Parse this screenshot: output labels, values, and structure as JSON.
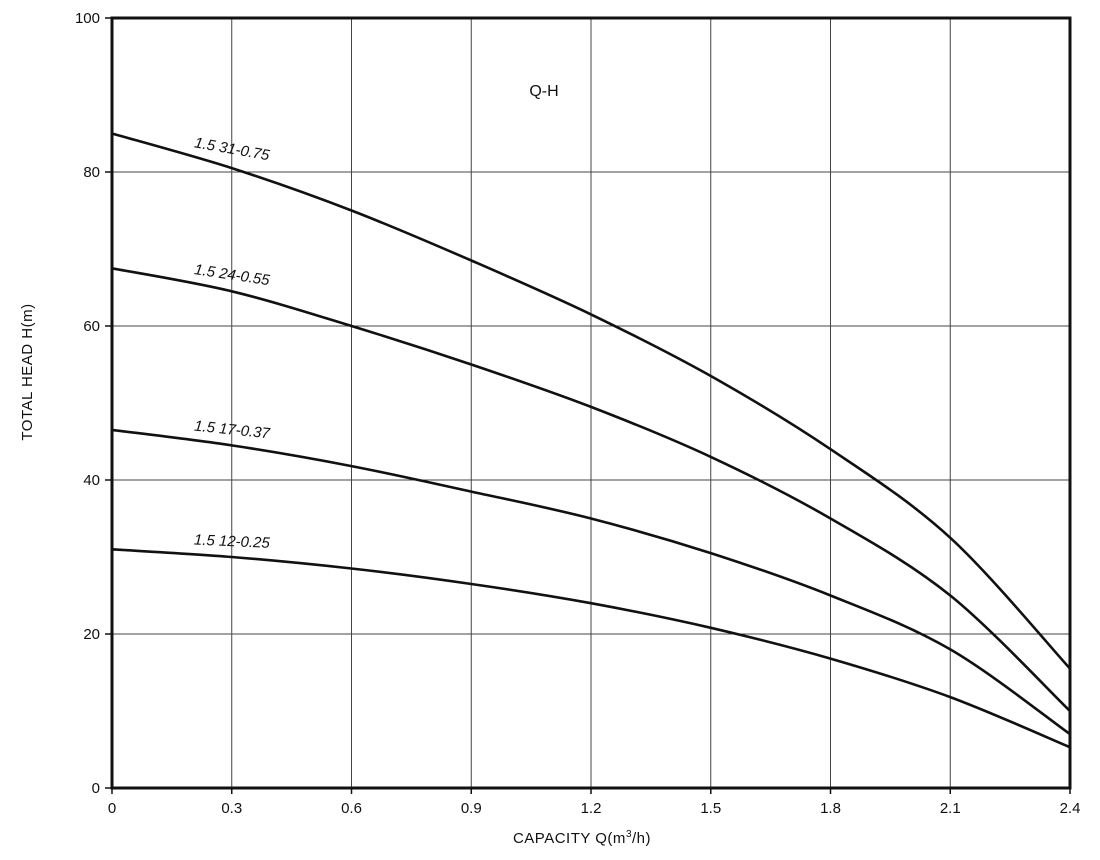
{
  "chart_data": {
    "type": "line",
    "title": "Q-H",
    "xlabel_main": "CAPACITY  Q(m",
    "xlabel_sup": "3",
    "xlabel_end": "/h)",
    "ylabel": "TOTAL HEAD  H(m)",
    "xlim": [
      0,
      2.4
    ],
    "ylim": [
      0,
      100
    ],
    "x_ticks": [
      "0",
      "0.3",
      "0.6",
      "0.9",
      "1.2",
      "1.5",
      "1.8",
      "2.1",
      "2.4"
    ],
    "y_ticks": [
      "0",
      "20",
      "40",
      "60",
      "80",
      "100"
    ],
    "grid": true,
    "series": [
      {
        "name": "1.5 31-0.75",
        "x": [
          0,
          0.3,
          0.6,
          0.9,
          1.2,
          1.5,
          1.8,
          2.1,
          2.4
        ],
        "y": [
          85,
          80.5,
          75,
          68.5,
          61.5,
          53.5,
          44,
          32.5,
          15.5
        ]
      },
      {
        "name": "1.5 24-0.55",
        "x": [
          0,
          0.3,
          0.6,
          0.9,
          1.2,
          1.5,
          1.8,
          2.1,
          2.4
        ],
        "y": [
          67.5,
          64.5,
          60,
          55,
          49.5,
          43,
          35,
          25,
          10
        ]
      },
      {
        "name": "1.5 17-0.37",
        "x": [
          0,
          0.3,
          0.6,
          0.9,
          1.2,
          1.5,
          1.8,
          2.1,
          2.4
        ],
        "y": [
          46.5,
          44.5,
          41.8,
          38.5,
          35,
          30.5,
          25,
          18,
          7
        ]
      },
      {
        "name": "1.5 12-0.25",
        "x": [
          0,
          0.3,
          0.6,
          0.9,
          1.2,
          1.5,
          1.8,
          2.1,
          2.4
        ],
        "y": [
          31,
          30,
          28.5,
          26.5,
          24,
          20.8,
          16.8,
          11.8,
          5.3
        ]
      }
    ]
  }
}
